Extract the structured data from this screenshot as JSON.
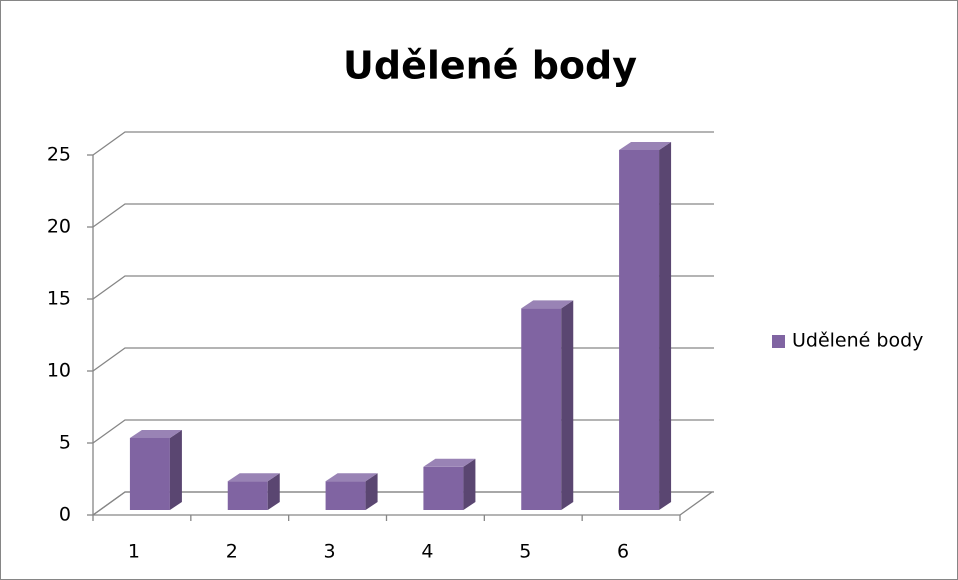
{
  "chart_data": {
    "type": "bar3d",
    "title": "Udělené body",
    "categories": [
      "1",
      "2",
      "3",
      "4",
      "5",
      "6"
    ],
    "series": [
      {
        "name": "Udělené body",
        "color": "#8064a2",
        "values": [
          5,
          2,
          2,
          3,
          14,
          25
        ]
      }
    ],
    "ylim": [
      0,
      25
    ],
    "yticks": [
      0,
      5,
      10,
      15,
      20,
      25
    ],
    "grid": true,
    "legend": "right"
  }
}
